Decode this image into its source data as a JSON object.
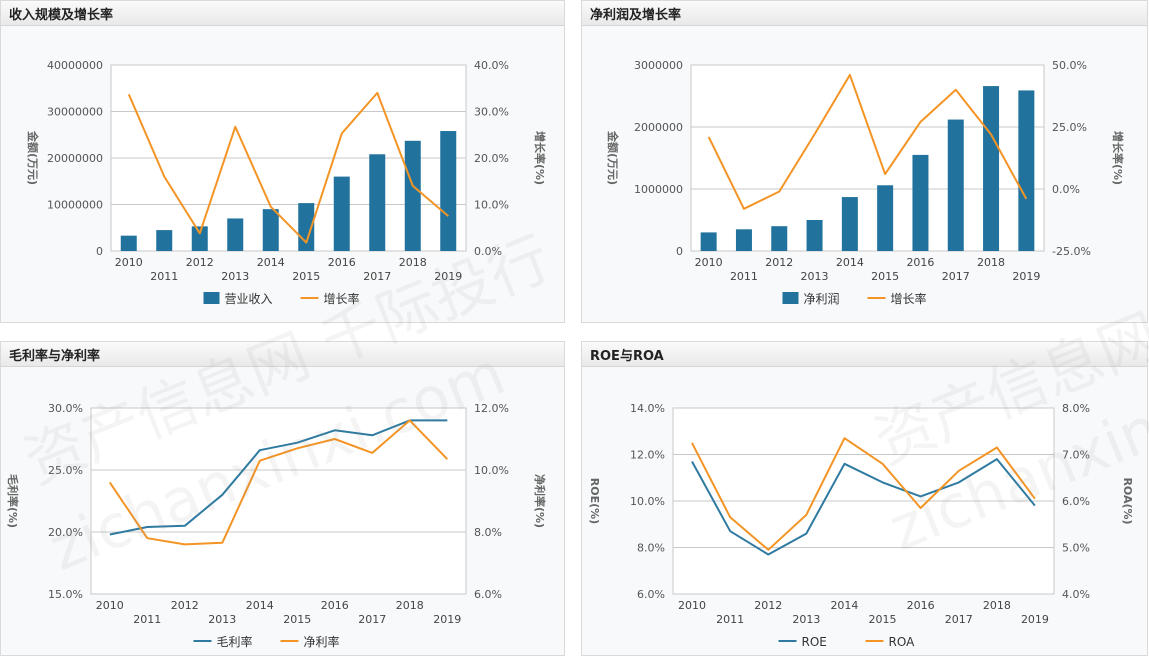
{
  "watermarks": [
    "资产信息网 千际投行",
    "zichanxinxi.com",
    "资产信息网 千",
    "zichanxinxi"
  ],
  "colors": {
    "bar": "#21739d",
    "line_blue": "#2e7aa0",
    "line_orange": "#f39425",
    "grid": "#c8c8c8",
    "axis": "#999999"
  },
  "chart_data": [
    {
      "title": "收入规模及增长率",
      "type": "bar",
      "categories": [
        "2010",
        "2011",
        "2012",
        "2013",
        "2014",
        "2015",
        "2016",
        "2017",
        "2018",
        "2019"
      ],
      "y_left": {
        "label": "金额(万元)",
        "ticks": [
          "0",
          "10000000",
          "20000000",
          "30000000",
          "40000000"
        ],
        "ylim": [
          0,
          40000000
        ]
      },
      "y_right": {
        "label": "增长率(%)",
        "ticks": [
          "0.0%",
          "10.0%",
          "20.0%",
          "30.0%",
          "40.0%"
        ],
        "ylim": [
          0,
          40
        ]
      },
      "series": [
        {
          "name": "营业收入",
          "type": "bar",
          "axis": "left",
          "values": [
            3300000,
            4500000,
            5300000,
            7000000,
            9000000,
            10300000,
            16000000,
            20800000,
            23700000,
            25800000
          ]
        },
        {
          "name": "增长率",
          "type": "line",
          "axis": "right",
          "values": [
            33.7,
            16.0,
            3.8,
            26.7,
            9.5,
            1.8,
            25.3,
            34.0,
            14.0,
            7.5
          ]
        }
      ]
    },
    {
      "title": "净利润及增长率",
      "type": "bar",
      "categories": [
        "2010",
        "2011",
        "2012",
        "2013",
        "2014",
        "2015",
        "2016",
        "2017",
        "2018",
        "2019"
      ],
      "y_left": {
        "label": "金额(万元)",
        "ticks": [
          "0",
          "1000000",
          "2000000",
          "3000000"
        ],
        "ylim": [
          0,
          3000000
        ]
      },
      "y_right": {
        "label": "增长率(%)",
        "ticks": [
          "-25.0%",
          "0.0%",
          "25.0%",
          "50.0%"
        ],
        "ylim": [
          -25,
          50
        ]
      },
      "series": [
        {
          "name": "净利润",
          "type": "bar",
          "axis": "left",
          "values": [
            300000,
            350000,
            400000,
            500000,
            870000,
            1060000,
            1550000,
            2120000,
            2660000,
            2590000
          ]
        },
        {
          "name": "增长率",
          "type": "line",
          "axis": "right",
          "values": [
            21.0,
            -8.0,
            -1.0,
            22.0,
            46.0,
            6.0,
            27.0,
            40.0,
            22.0,
            -4.0
          ]
        }
      ]
    },
    {
      "title": "毛利率与净利率",
      "type": "line",
      "categories": [
        "2010",
        "2011",
        "2012",
        "2013",
        "2014",
        "2015",
        "2016",
        "2017",
        "2018",
        "2019"
      ],
      "y_left": {
        "label": "毛利率(%)",
        "ticks": [
          "15.0%",
          "20.0%",
          "25.0%",
          "30.0%"
        ],
        "ylim": [
          15,
          30
        ]
      },
      "y_right": {
        "label": "净利率(%)",
        "ticks": [
          "6.0%",
          "8.0%",
          "10.0%",
          "12.0%"
        ],
        "ylim": [
          6,
          12
        ]
      },
      "series": [
        {
          "name": "毛利率",
          "type": "line",
          "axis": "left",
          "color": "blue",
          "values": [
            19.8,
            20.4,
            20.5,
            23.0,
            26.6,
            27.2,
            28.2,
            27.8,
            29.0,
            29.0
          ]
        },
        {
          "name": "净利率",
          "type": "line",
          "axis": "right",
          "color": "orange",
          "values": [
            9.6,
            7.8,
            7.6,
            7.65,
            10.3,
            10.7,
            11.0,
            10.55,
            11.6,
            10.35
          ]
        }
      ]
    },
    {
      "title": "ROE与ROA",
      "type": "line",
      "categories": [
        "2010",
        "2011",
        "2012",
        "2013",
        "2014",
        "2015",
        "2016",
        "2017",
        "2018",
        "2019"
      ],
      "y_left": {
        "label": "ROE(%)",
        "ticks": [
          "6.0%",
          "8.0%",
          "10.0%",
          "12.0%",
          "14.0%"
        ],
        "ylim": [
          6,
          14
        ]
      },
      "y_right": {
        "label": "ROA(%)",
        "ticks": [
          "4.0%",
          "5.0%",
          "6.0%",
          "7.0%",
          "8.0%"
        ],
        "ylim": [
          4,
          8
        ]
      },
      "series": [
        {
          "name": "ROE",
          "type": "line",
          "axis": "left",
          "color": "blue",
          "values": [
            11.7,
            8.7,
            7.7,
            8.6,
            11.6,
            10.8,
            10.2,
            10.8,
            11.8,
            9.8
          ]
        },
        {
          "name": "ROA",
          "type": "line",
          "axis": "right",
          "color": "orange",
          "values": [
            7.25,
            5.65,
            4.95,
            5.7,
            7.35,
            6.8,
            5.85,
            6.65,
            7.15,
            6.05
          ]
        }
      ]
    }
  ]
}
